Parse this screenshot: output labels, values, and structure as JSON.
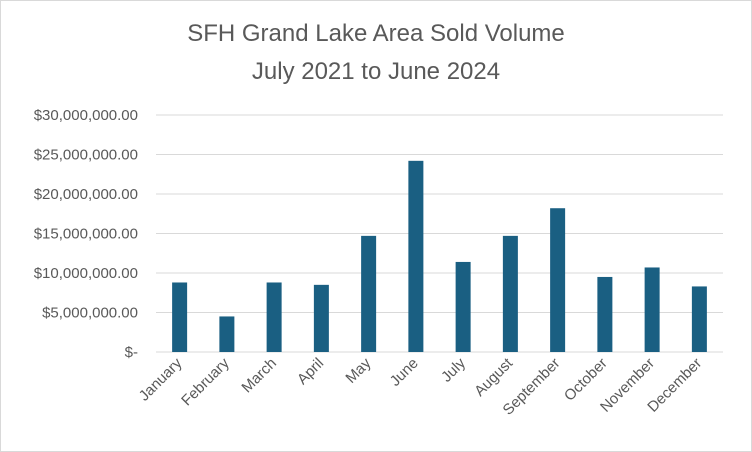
{
  "chart_data": {
    "type": "bar",
    "title": "SFH Grand Lake Area Sold Volume",
    "subtitle": "July 2021 to June 2024",
    "categories": [
      "January",
      "February",
      "March",
      "April",
      "May",
      "June",
      "July",
      "August",
      "September",
      "October",
      "November",
      "December"
    ],
    "values": [
      8800000,
      4500000,
      8800000,
      8500000,
      14700000,
      24200000,
      11400000,
      14700000,
      18200000,
      9500000,
      10700000,
      8300000
    ],
    "ylim": [
      0,
      30000000
    ],
    "yticks": [
      {
        "value": 0,
        "label": "$-"
      },
      {
        "value": 5000000,
        "label": "$5,000,000.00"
      },
      {
        "value": 10000000,
        "label": "$10,000,000.00"
      },
      {
        "value": 15000000,
        "label": "$15,000,000.00"
      },
      {
        "value": 20000000,
        "label": "$20,000,000.00"
      },
      {
        "value": 25000000,
        "label": "$25,000,000.00"
      },
      {
        "value": 30000000,
        "label": "$30,000,000.00"
      }
    ],
    "xlabel": "",
    "ylabel": "",
    "grid": true,
    "legend": "none",
    "bar_color": "#1a5f82",
    "grid_color": "#d9d9d9"
  }
}
